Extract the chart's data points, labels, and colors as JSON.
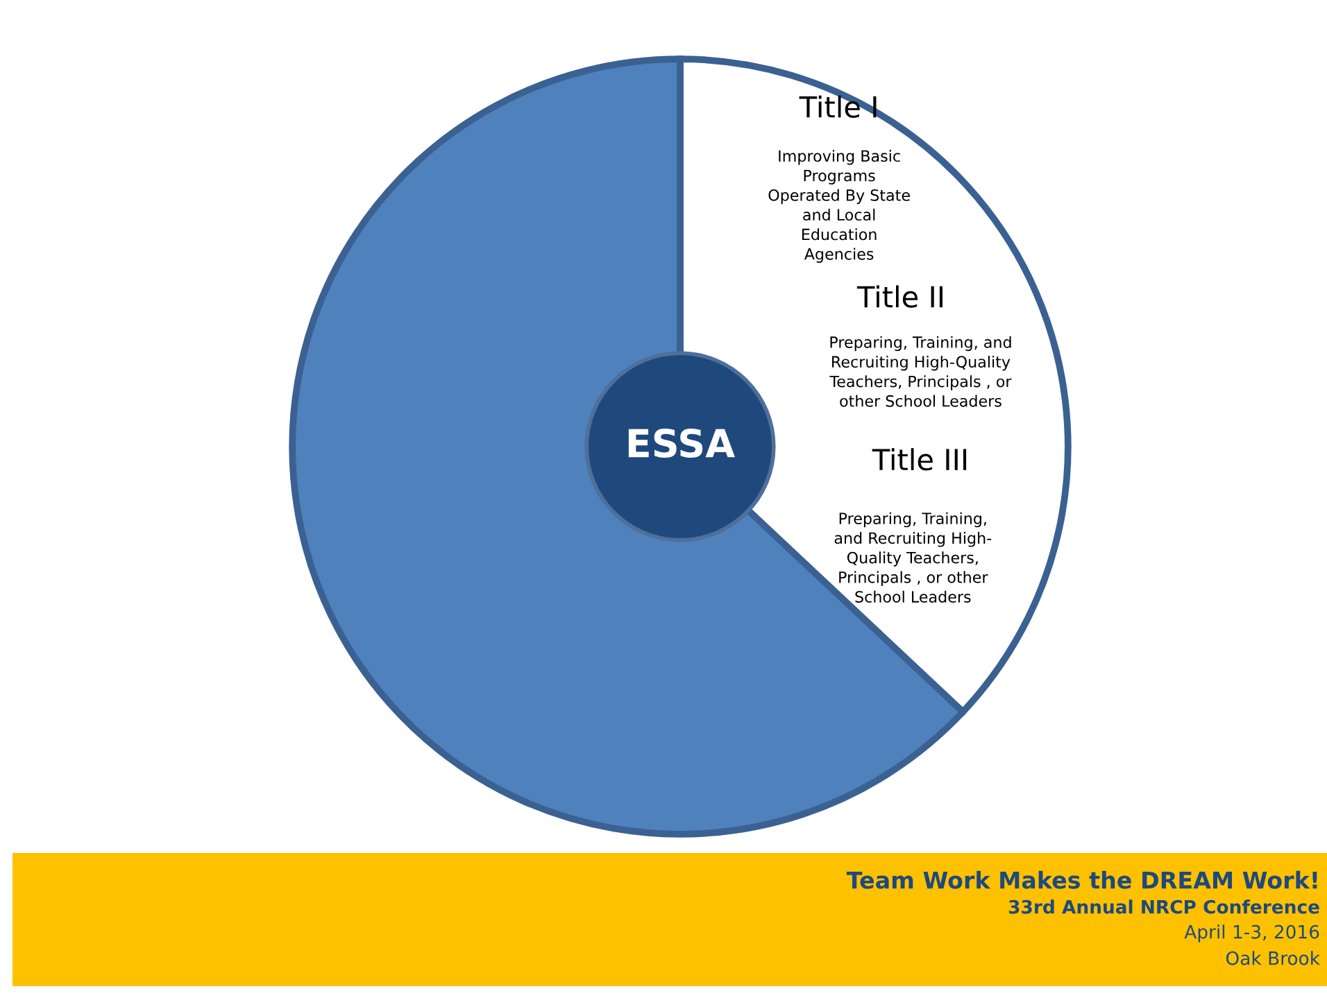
{
  "chart_data": {
    "type": "donut",
    "categories": [
      null,
      null
    ],
    "values": [
      37,
      63
    ],
    "colors": [
      "#ffffff",
      "#4f81bd"
    ],
    "annotations": [
      "ESSA",
      "Title I",
      "Improving Basic\nPrograms\nOperated By State\nand Local\nEducation\nAgencies",
      "Title II",
      "Preparing, Training, and\nRecruiting High-Quality\nTeachers, Principals , or\nother School Leaders",
      "Title III",
      "Preparing, Training,\nand Recruiting High-\nQuality Teachers,\nPrincipals , or other\nSchool Leaders",
      "Team Work Makes the DREAM Work!",
      "33rd Annual NRCP Conference",
      "April 1-3, 2016",
      "Oak Brook"
    ]
  }
}
